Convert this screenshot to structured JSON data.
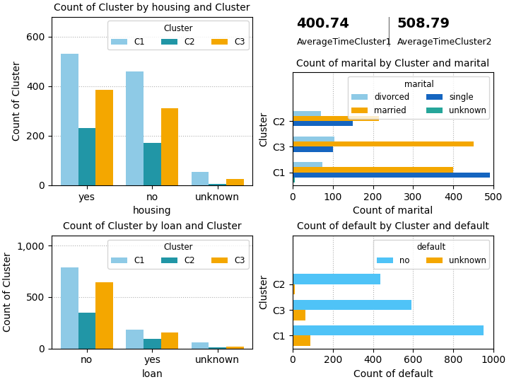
{
  "chart_data": [
    {
      "type": "bar",
      "title": "Count of Cluster by housing and Cluster",
      "xlabel": "housing",
      "ylabel": "Count of Cluster",
      "categories": [
        "yes",
        "no",
        "unknown"
      ],
      "series": [
        {
          "name": "C1",
          "color": "#8ecae6",
          "values": [
            530,
            460,
            55
          ]
        },
        {
          "name": "C2",
          "color": "#2196a6",
          "values": [
            230,
            170,
            5
          ]
        },
        {
          "name": "C3",
          "color": "#f4a700",
          "values": [
            385,
            310,
            25
          ]
        }
      ],
      "ylim": [
        0,
        680
      ],
      "yticks": [
        0,
        200,
        400,
        600
      ],
      "grid": true,
      "legend": "upper right",
      "legend_title": "Cluster"
    },
    {
      "type": "kpi",
      "categories": [
        "AverageTimeCluster1",
        "AverageTimeCluster2"
      ],
      "values": [
        400.74,
        508.79
      ]
    },
    {
      "type": "bar",
      "orientation": "horizontal",
      "title": "Count of marital by Cluster and marital",
      "xlabel": "Count of marital",
      "ylabel": "Cluster",
      "categories": [
        "C1",
        "C3",
        "C2"
      ],
      "series": [
        {
          "name": "divorced",
          "color": "#8ecae6",
          "values": [
            75,
            105,
            70
          ]
        },
        {
          "name": "married",
          "color": "#f4a700",
          "values": [
            400,
            450,
            215
          ]
        },
        {
          "name": "single",
          "color": "#1565c0",
          "values": [
            490,
            100,
            150
          ]
        },
        {
          "name": "unknown",
          "color": "#26a69a",
          "values": [
            5,
            3,
            2
          ]
        }
      ],
      "xlim": [
        0,
        500
      ],
      "xticks": [
        0,
        100,
        200,
        300,
        400,
        500
      ],
      "grid": true,
      "legend": "upper right",
      "legend_title": "marital"
    },
    {
      "type": "bar",
      "title": "Count of Cluster by loan and Cluster",
      "xlabel": "loan",
      "ylabel": "Count of Cluster",
      "categories": [
        "no",
        "yes",
        "unknown"
      ],
      "series": [
        {
          "name": "C1",
          "color": "#8ecae6",
          "values": [
            790,
            185,
            60
          ]
        },
        {
          "name": "C2",
          "color": "#2196a6",
          "values": [
            350,
            95,
            10
          ]
        },
        {
          "name": "C3",
          "color": "#f4a700",
          "values": [
            645,
            155,
            15
          ]
        }
      ],
      "ylim": [
        0,
        1100
      ],
      "yticks": [
        0,
        500,
        {
          "value": 1000,
          "label": "1,000"
        }
      ],
      "grid": true,
      "legend": "upper right",
      "legend_title": "Cluster"
    },
    {
      "type": "bar",
      "orientation": "horizontal",
      "title": "Count of default by Cluster and default",
      "xlabel": "Count of default",
      "ylabel": "Cluster",
      "categories": [
        "C1",
        "C3",
        "C2"
      ],
      "series": [
        {
          "name": "no",
          "color": "#4fc3f7",
          "values": [
            950,
            590,
            435
          ]
        },
        {
          "name": "unknown",
          "color": "#f4a700",
          "values": [
            90,
            65,
            10
          ]
        }
      ],
      "xlim": [
        0,
        1000
      ],
      "xticks": [
        0,
        200,
        400,
        600,
        800,
        1000
      ],
      "grid": true,
      "legend": "upper right",
      "legend_title": "default"
    }
  ]
}
